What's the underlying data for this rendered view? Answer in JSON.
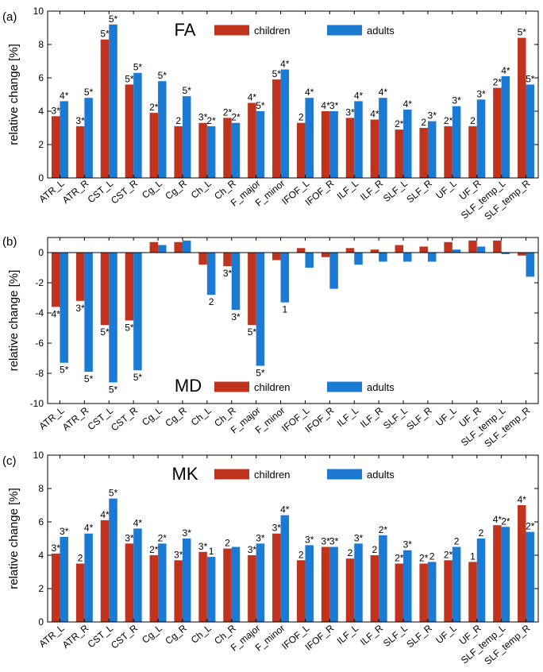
{
  "chart_data": [
    {
      "type": "bar",
      "panel_label": "(a)",
      "title": "FA",
      "ylabel": "relative change [%]",
      "ylim": [
        0,
        10
      ],
      "yticks": [
        0,
        2,
        4,
        6,
        8,
        10
      ],
      "categories": [
        "ATR_L",
        "ATR_R",
        "CST_L",
        "CST_R",
        "Cg_L",
        "Cg_R",
        "Ch_L",
        "Ch_R",
        "F_major",
        "F_minor",
        "IFOF_L",
        "IFOF_R",
        "ILF_L",
        "ILF_R",
        "SLF_L",
        "SLF_R",
        "UF_L",
        "UF_R",
        "SLF_temp_L",
        "SLF_temp_R"
      ],
      "legend_position": "top",
      "series": [
        {
          "name": "children",
          "color": "#c0341d",
          "values": [
            3.7,
            3.1,
            8.3,
            5.6,
            3.9,
            3.1,
            3.3,
            3.6,
            4.5,
            5.9,
            3.3,
            4.0,
            3.6,
            3.5,
            2.9,
            3.0,
            3.1,
            3.1,
            5.4,
            8.4
          ],
          "labels": [
            "3*",
            "3*",
            "5*",
            "5*",
            "2*",
            "2",
            "3*",
            "2*",
            "4*",
            "5*",
            "2",
            "4*",
            "3*",
            "4*",
            "2*",
            "2",
            "2*",
            "2",
            "2*",
            "5*"
          ]
        },
        {
          "name": "adults",
          "color": "#1a7ad4",
          "values": [
            4.6,
            4.8,
            9.2,
            6.3,
            5.8,
            4.9,
            3.1,
            3.3,
            4.0,
            6.5,
            4.8,
            4.0,
            4.6,
            4.8,
            4.1,
            3.4,
            4.3,
            4.7,
            6.1,
            5.6
          ],
          "labels": [
            "4*",
            "5*",
            "5*",
            "5*",
            "5*",
            "5*",
            "2*",
            "2*",
            "5*",
            "4*",
            "4*",
            "3*",
            "4*",
            "4*",
            "4*",
            "3*",
            "3*",
            "3*",
            "4*",
            "5*"
          ]
        }
      ]
    },
    {
      "type": "bar",
      "panel_label": "(b)",
      "title": "MD",
      "ylabel": "relative change [%]",
      "ylim": [
        -10,
        1
      ],
      "yticks": [
        0,
        -2,
        -4,
        -6,
        -8,
        -10
      ],
      "categories": [
        "ATR_L",
        "ATR_R",
        "CST_L",
        "CST_R",
        "Cg_L",
        "Cg_R",
        "Ch_L",
        "Ch_R",
        "F_major",
        "F_minor",
        "IFOF_L",
        "IFOF_R",
        "ILF_L",
        "ILF_R",
        "SLF_L",
        "SLF_R",
        "UF_L",
        "UF_R",
        "SLF_temp_L",
        "SLF_temp_R"
      ],
      "legend_position": "bottom",
      "series": [
        {
          "name": "children",
          "color": "#c0341d",
          "values": [
            -3.6,
            -3.2,
            -4.8,
            -4.5,
            0.7,
            0.7,
            -0.8,
            -0.9,
            -4.8,
            -0.5,
            0.3,
            -0.3,
            0.3,
            0.2,
            0.5,
            0.4,
            0.7,
            0.8,
            0.8,
            -0.2
          ],
          "labels": [
            "4*",
            "3*",
            "5*",
            "5*",
            "",
            "",
            "",
            "3*",
            "5*",
            "",
            "",
            "",
            "",
            "",
            "",
            "",
            "",
            "",
            "",
            ""
          ]
        },
        {
          "name": "adults",
          "color": "#1a7ad4",
          "values": [
            -7.3,
            -7.9,
            -8.6,
            -7.8,
            0.5,
            0.8,
            -2.8,
            -3.8,
            -7.5,
            -3.3,
            -1.0,
            -2.4,
            -0.8,
            -0.6,
            -0.6,
            -0.6,
            0.2,
            0.4,
            -0.1,
            -1.6
          ],
          "labels": [
            "5*",
            "5*",
            "5*",
            "5*",
            "",
            "",
            "2",
            "3*",
            "5*",
            "1",
            "",
            "",
            "",
            "",
            "",
            "",
            "",
            "",
            "",
            ""
          ]
        }
      ]
    },
    {
      "type": "bar",
      "panel_label": "(c)",
      "title": "MK",
      "ylabel": "relative change [%]",
      "ylim": [
        0,
        10
      ],
      "yticks": [
        0,
        2,
        4,
        6,
        8,
        10
      ],
      "categories": [
        "ATR_L",
        "ATR_R",
        "CST_L",
        "CST_R",
        "Cg_L",
        "Cg_R",
        "Ch_L",
        "Ch_R",
        "F_major",
        "F_minor",
        "IFOF_L",
        "IFOF_R",
        "ILF_L",
        "ILF_R",
        "SLF_L",
        "SLF_R",
        "UF_L",
        "UF_R",
        "SLF_temp_L",
        "SLF_temp_R"
      ],
      "legend_position": "top",
      "series": [
        {
          "name": "children",
          "color": "#c0341d",
          "values": [
            4.1,
            3.5,
            6.1,
            4.7,
            4.0,
            3.7,
            4.2,
            4.4,
            4.0,
            5.3,
            3.7,
            4.5,
            3.8,
            4.0,
            3.5,
            3.5,
            3.7,
            3.6,
            5.8,
            7.0
          ],
          "labels": [
            "3*",
            "2",
            "4*",
            "3*",
            "2*",
            "3*",
            "3*",
            "2",
            "3*",
            "3*",
            "2",
            "3*",
            "2",
            "2",
            "2*",
            "2*",
            "2*",
            "1",
            "4*",
            "4*"
          ]
        },
        {
          "name": "adults",
          "color": "#1a7ad4",
          "values": [
            5.1,
            5.3,
            7.4,
            5.6,
            4.7,
            5.0,
            3.9,
            4.5,
            4.7,
            6.4,
            4.6,
            4.5,
            4.7,
            5.2,
            4.3,
            3.6,
            4.5,
            5.0,
            5.7,
            5.4
          ],
          "labels": [
            "3*",
            "4*",
            "5*",
            "4*",
            "2*",
            "3*",
            "1",
            "",
            "3*",
            "4*",
            "3*",
            "3*",
            "3*",
            "2*",
            "3*",
            "2",
            "2",
            "2",
            "2*",
            "2*"
          ]
        }
      ]
    }
  ]
}
